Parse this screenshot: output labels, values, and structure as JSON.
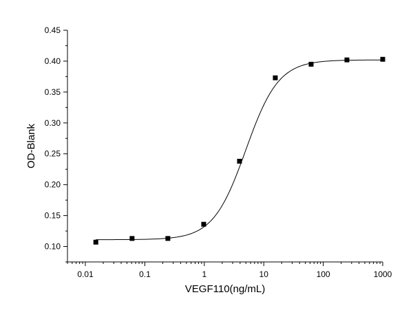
{
  "chart_data": {
    "type": "scatter",
    "title": "",
    "xlabel": "VEGF110(ng/mL)",
    "ylabel": "OD-Blank",
    "xscale": "log",
    "xlim": [
      0.005,
      1000
    ],
    "ylim": [
      0.075,
      0.45
    ],
    "grid": false,
    "x_ticks": [
      0.01,
      0.1,
      1,
      10,
      100,
      1000
    ],
    "x_tick_labels": [
      "0.01",
      "0.1",
      "1",
      "10",
      "100",
      "1000"
    ],
    "y_ticks": [
      0.1,
      0.15,
      0.2,
      0.25,
      0.3,
      0.35,
      0.4,
      0.45
    ],
    "y_tick_labels": [
      "0.10",
      "0.15",
      "0.20",
      "0.25",
      "0.30",
      "0.35",
      "0.40",
      "0.45"
    ],
    "series": [
      {
        "marker": "square",
        "color": "#000000",
        "x": [
          0.015,
          0.061,
          0.244,
          0.977,
          3.906,
          15.625,
          62.5,
          250,
          1000
        ],
        "y": [
          0.107,
          0.113,
          0.113,
          0.136,
          0.238,
          0.373,
          0.395,
          0.402,
          0.403
        ]
      }
    ],
    "fit_curve": {
      "model": "4PL",
      "bottom": 0.111,
      "top": 0.402,
      "ec50": 5.0,
      "hill": 1.58,
      "color": "#000000"
    }
  }
}
